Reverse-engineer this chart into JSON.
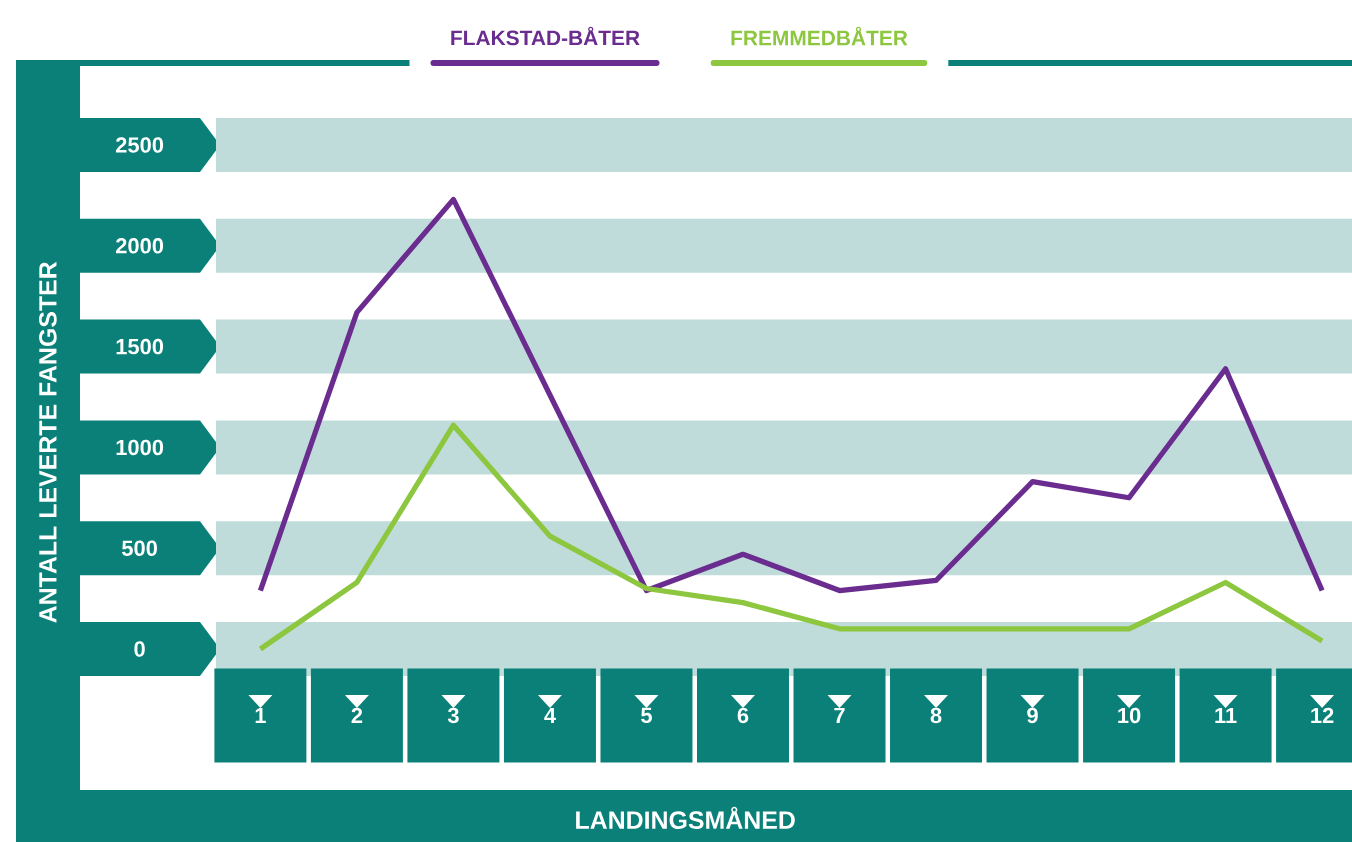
{
  "chart_data": {
    "type": "line",
    "xlabel": "LANDINGSMÅNED",
    "ylabel": "ANTALL LEVERTE FANGSTER",
    "categories": [
      "1",
      "2",
      "3",
      "4",
      "5",
      "6",
      "7",
      "8",
      "9",
      "10",
      "11",
      "12"
    ],
    "series": [
      {
        "name": "FLAKSTAD-BÅTER",
        "color": "#6a2c8e",
        "values": [
          290,
          1670,
          2230,
          1260,
          290,
          470,
          290,
          340,
          830,
          750,
          1390,
          290
        ]
      },
      {
        "name": "FREMMEDBÅTER",
        "color": "#8dc63f",
        "values": [
          0,
          330,
          1110,
          560,
          300,
          230,
          100,
          100,
          100,
          100,
          330,
          40
        ]
      }
    ],
    "ylim": [
      0,
      2500
    ],
    "yticks": [
      0,
      500,
      1000,
      1500,
      2000,
      2500
    ],
    "grid": "y",
    "legend": "top",
    "marker": "none",
    "line_style": "solid"
  }
}
